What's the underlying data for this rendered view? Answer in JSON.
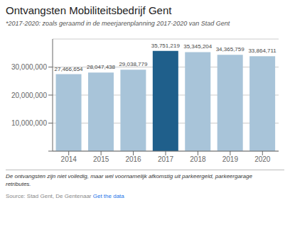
{
  "chart_data": {
    "type": "bar",
    "title": "Ontvangsten Mobiliteitsbedrijf Gent",
    "subtitle": "*2017-2020: zoals geraamd in de meerjarenplanning 2017-2020 van Stad Gent",
    "categories": [
      "2014",
      "2015",
      "2016",
      "2017",
      "2018",
      "2019",
      "2020"
    ],
    "values": [
      27466654,
      28047438,
      29038779,
      35751219,
      35345204,
      34365759,
      33864711
    ],
    "value_labels": [
      "27,466,654",
      "28,047,438",
      "29,038,779",
      "35,751,219",
      "35,345,204",
      "34,365,759",
      "33,864,711"
    ],
    "colors": [
      "#a8c4d9",
      "#a8c4d9",
      "#a8c4d9",
      "#1f5f8b",
      "#a8c4d9",
      "#a8c4d9",
      "#a8c4d9"
    ],
    "ylim": [
      0,
      40000000
    ],
    "yticks": [
      {
        "value": 0,
        "label": ""
      },
      {
        "value": 10000000,
        "label": "10,000,000"
      },
      {
        "value": 20000000,
        "label": "20,000,000"
      },
      {
        "value": 30000000,
        "label": "30,000,000"
      }
    ],
    "grid": true,
    "data_labels": true,
    "footnote": [
      "De ontvangsten zijn niet volledig, maar wel voornamelijk afkomstig uit parkeergeld, parkeergarage",
      "retributes."
    ],
    "source": "Source: Stad Gent, De Gentenaar",
    "source_link": "Get the data"
  }
}
